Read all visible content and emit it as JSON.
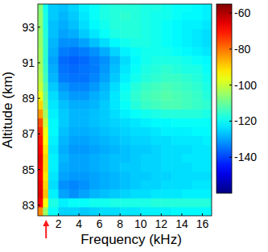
{
  "chart_data": {
    "type": "heatmap",
    "x_label": "Frequency (kHz)",
    "y_label": "Altitude (km)",
    "xlim": [
      0,
      16.9
    ],
    "ylim": [
      82.4,
      94.3
    ],
    "xticks": [
      2,
      4,
      6,
      8,
      10,
      12,
      14,
      16
    ],
    "yticks": [
      83,
      85,
      87,
      89,
      91,
      93
    ],
    "x_edges": [
      0,
      0.5,
      1,
      2,
      3,
      4,
      5,
      6,
      7,
      8,
      9,
      10,
      11,
      12,
      13,
      14,
      15,
      16,
      17
    ],
    "y_edges": [
      82.4,
      82.9,
      83.4,
      83.9,
      84.4,
      84.9,
      85.4,
      85.9,
      86.4,
      86.9,
      87.4,
      87.9,
      88.4,
      88.9,
      89.4,
      89.9,
      90.4,
      90.9,
      91.4,
      91.9,
      92.4,
      92.9,
      93.4,
      93.9,
      94.4
    ],
    "cells": [
      [
        -82,
        -105,
        -120,
        -125,
        -125,
        -126,
        -125,
        -124,
        -124,
        -123,
        -123,
        -122,
        -122,
        -122,
        -121,
        -121,
        -121,
        -121
      ],
      [
        -68,
        -95,
        -118,
        -122,
        -120,
        -120,
        -119,
        -119,
        -118,
        -118,
        -118,
        -118,
        -117,
        -117,
        -117,
        -117,
        -117,
        -117
      ],
      [
        -65,
        -88,
        -122,
        -130,
        -132,
        -130,
        -128,
        -127,
        -126,
        -125,
        -124,
        -124,
        -123,
        -123,
        -123,
        -122,
        -122,
        -122
      ],
      [
        -66,
        -90,
        -124,
        -132,
        -133,
        -132,
        -130,
        -129,
        -128,
        -127,
        -126,
        -125,
        -125,
        -124,
        -124,
        -124,
        -123,
        -123
      ],
      [
        -68,
        -92,
        -123,
        -130,
        -131,
        -131,
        -130,
        -129,
        -128,
        -127,
        -126,
        -126,
        -125,
        -125,
        -124,
        -124,
        -124,
        -124
      ],
      [
        -67,
        -90,
        -122,
        -129,
        -130,
        -130,
        -129,
        -128,
        -127,
        -126,
        -126,
        -125,
        -125,
        -124,
        -124,
        -124,
        -123,
        -123
      ],
      [
        -66,
        -90,
        -122,
        -128,
        -130,
        -130,
        -129,
        -128,
        -127,
        -127,
        -126,
        -125,
        -125,
        -124,
        -124,
        -123,
        -123,
        -123
      ],
      [
        -68,
        -92,
        -123,
        -129,
        -131,
        -131,
        -130,
        -129,
        -128,
        -127,
        -126,
        -126,
        -125,
        -124,
        -124,
        -124,
        -123,
        -123
      ],
      [
        -70,
        -94,
        -122,
        -128,
        -130,
        -130,
        -129,
        -128,
        -127,
        -126,
        -125,
        -125,
        -124,
        -124,
        -123,
        -123,
        -123,
        -122
      ],
      [
        -72,
        -96,
        -121,
        -127,
        -129,
        -129,
        -128,
        -127,
        -126,
        -125,
        -124,
        -124,
        -123,
        -122,
        -122,
        -122,
        -121,
        -121
      ],
      [
        -76,
        -100,
        -121,
        -126,
        -128,
        -128,
        -127,
        -126,
        -125,
        -124,
        -123,
        -122,
        -121,
        -121,
        -120,
        -120,
        -120,
        -120
      ],
      [
        -84,
        -104,
        -122,
        -126,
        -128,
        -128,
        -127,
        -126,
        -124,
        -122,
        -120,
        -119,
        -118,
        -117,
        -117,
        -117,
        -117,
        -118
      ],
      [
        -90,
        -108,
        -123,
        -127,
        -129,
        -129,
        -128,
        -126,
        -123,
        -120,
        -117,
        -115,
        -114,
        -113,
        -113,
        -114,
        -115,
        -116
      ],
      [
        -96,
        -110,
        -124,
        -129,
        -131,
        -131,
        -129,
        -127,
        -123,
        -119,
        -116,
        -114,
        -113,
        -112,
        -113,
        -114,
        -115,
        -117
      ],
      [
        -100,
        -112,
        -126,
        -131,
        -133,
        -133,
        -131,
        -128,
        -124,
        -120,
        -117,
        -115,
        -114,
        -113,
        -114,
        -115,
        -116,
        -118
      ],
      [
        -102,
        -114,
        -128,
        -134,
        -135,
        -135,
        -133,
        -130,
        -126,
        -122,
        -119,
        -117,
        -116,
        -115,
        -115,
        -116,
        -117,
        -119
      ],
      [
        -103,
        -115,
        -129,
        -135,
        -136,
        -135,
        -134,
        -131,
        -127,
        -123,
        -120,
        -118,
        -117,
        -116,
        -117,
        -118,
        -118,
        -120
      ],
      [
        -104,
        -116,
        -130,
        -136,
        -137,
        -136,
        -134,
        -132,
        -128,
        -124,
        -121,
        -119,
        -118,
        -118,
        -118,
        -119,
        -120,
        -121
      ],
      [
        -104,
        -116,
        -129,
        -134,
        -135,
        -134,
        -132,
        -129,
        -125,
        -122,
        -120,
        -119,
        -119,
        -119,
        -120,
        -121,
        -122,
        -123
      ],
      [
        -105,
        -116,
        -128,
        -132,
        -132,
        -130,
        -127,
        -124,
        -121,
        -119,
        -118,
        -118,
        -119,
        -120,
        -121,
        -122,
        -123,
        -124
      ],
      [
        -105,
        -117,
        -127,
        -130,
        -129,
        -126,
        -123,
        -120,
        -118,
        -117,
        -117,
        -118,
        -119,
        -120,
        -121,
        -122,
        -123,
        -124
      ],
      [
        -106,
        -118,
        -127,
        -129,
        -127,
        -124,
        -121,
        -119,
        -117,
        -117,
        -117,
        -118,
        -119,
        -120,
        -121,
        -122,
        -122,
        -123
      ],
      [
        -106,
        -118,
        -126,
        -128,
        -126,
        -123,
        -120,
        -118,
        -117,
        -116,
        -117,
        -118,
        -119,
        -119,
        -120,
        -121,
        -121,
        -122
      ],
      [
        -107,
        -119,
        -126,
        -127,
        -125,
        -122,
        -120,
        -118,
        -117,
        -117,
        -117,
        -118,
        -118,
        -119,
        -120,
        -120,
        -121,
        -122
      ]
    ],
    "color_range": [
      -160,
      -55
    ],
    "color_ticks": [
      -140,
      -120,
      -100,
      -80,
      -60
    ],
    "annotation_arrow": {
      "x": 0.8,
      "color": "#ff1a1a"
    }
  }
}
